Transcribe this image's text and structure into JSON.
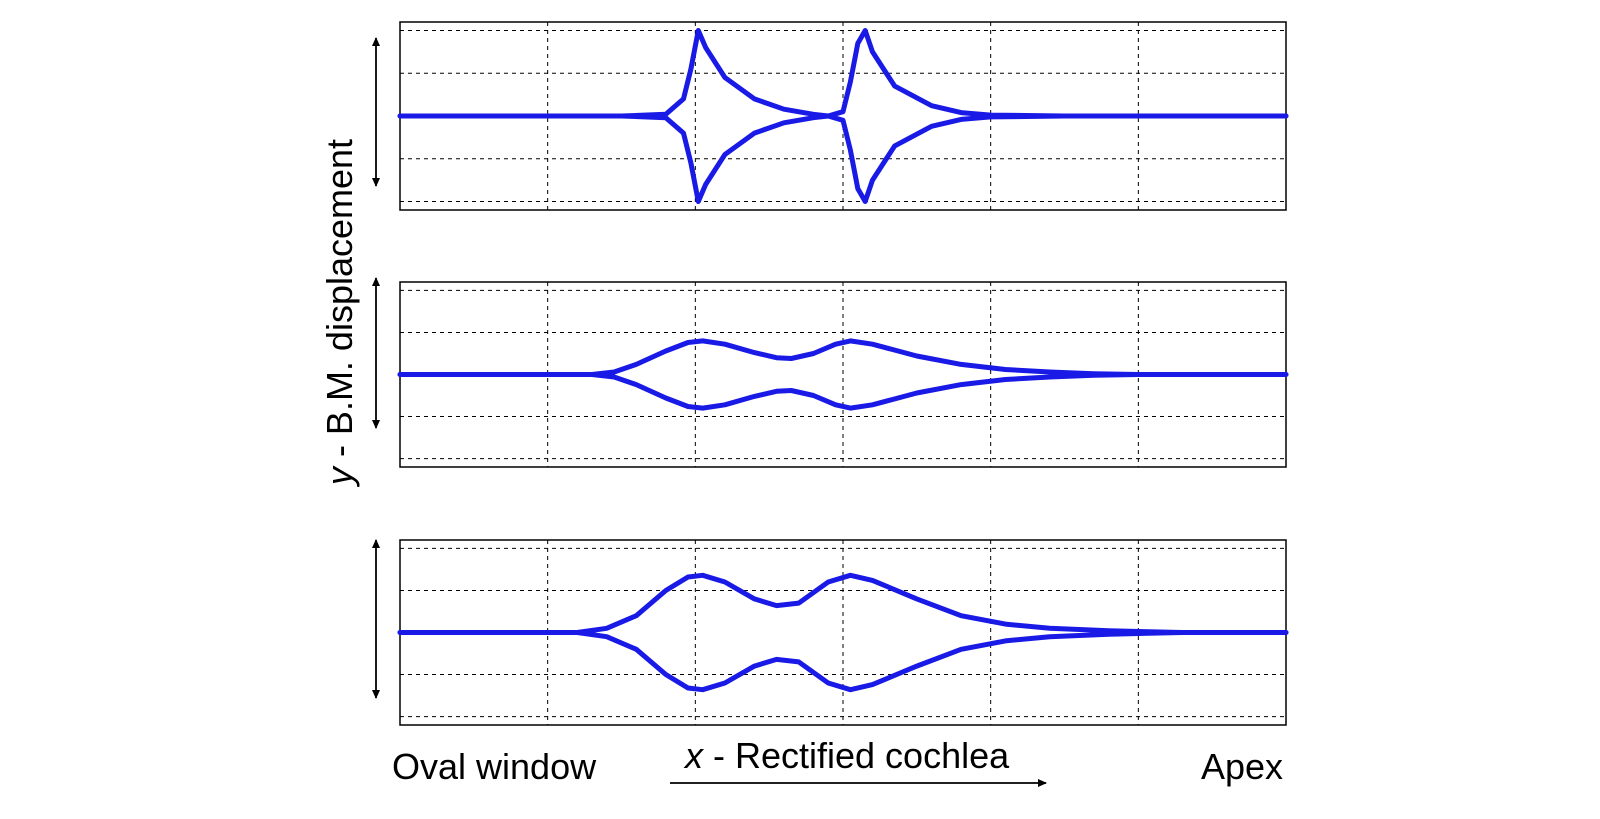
{
  "colors": {
    "curve": "#1a1ae6",
    "frame": "#000000",
    "grid": "#000000"
  },
  "labels": {
    "y_axis_var": "y",
    "y_axis_text": " - B.M. displacement",
    "x_axis_var": "x",
    "x_axis_text": " - Rectified cochlea",
    "x_left": "Oval window",
    "x_right": "Apex"
  },
  "chart_data": [
    {
      "type": "line",
      "panel": 1,
      "grid": true,
      "xlim": [
        0,
        6
      ],
      "ylim": [
        -1.1,
        1.1
      ],
      "series": [
        {
          "points": [
            [
              0,
              0
            ],
            [
              1.5,
              0
            ],
            [
              1.8,
              0.02
            ],
            [
              1.92,
              0.2
            ],
            [
              1.97,
              0.55
            ],
            [
              2.02,
              1.0
            ],
            [
              2.07,
              0.8
            ],
            [
              2.2,
              0.45
            ],
            [
              2.4,
              0.2
            ],
            [
              2.6,
              0.08
            ],
            [
              2.8,
              0.02
            ],
            [
              2.9,
              0
            ],
            [
              3.0,
              0.05
            ],
            [
              3.05,
              0.4
            ],
            [
              3.1,
              0.85
            ],
            [
              3.15,
              1.0
            ],
            [
              3.2,
              0.75
            ],
            [
              3.35,
              0.35
            ],
            [
              3.6,
              0.12
            ],
            [
              3.8,
              0.04
            ],
            [
              4.0,
              0.01
            ],
            [
              4.5,
              0
            ],
            [
              6,
              0
            ]
          ]
        },
        {
          "points": [
            [
              0,
              0
            ],
            [
              1.5,
              0
            ],
            [
              1.8,
              -0.02
            ],
            [
              1.92,
              -0.2
            ],
            [
              1.97,
              -0.55
            ],
            [
              2.02,
              -1.0
            ],
            [
              2.07,
              -0.8
            ],
            [
              2.2,
              -0.45
            ],
            [
              2.4,
              -0.2
            ],
            [
              2.6,
              -0.08
            ],
            [
              2.8,
              -0.02
            ],
            [
              2.9,
              0
            ],
            [
              3.0,
              -0.05
            ],
            [
              3.05,
              -0.4
            ],
            [
              3.1,
              -0.85
            ],
            [
              3.15,
              -1.0
            ],
            [
              3.2,
              -0.75
            ],
            [
              3.35,
              -0.35
            ],
            [
              3.6,
              -0.12
            ],
            [
              3.8,
              -0.04
            ],
            [
              4.0,
              -0.01
            ],
            [
              4.5,
              0
            ],
            [
              6,
              0
            ]
          ]
        }
      ]
    },
    {
      "type": "line",
      "panel": 2,
      "grid": true,
      "xlim": [
        0,
        6
      ],
      "ylim": [
        -1.1,
        1.1
      ],
      "series": [
        {
          "points": [
            [
              0,
              0
            ],
            [
              1.3,
              0
            ],
            [
              1.45,
              0.03
            ],
            [
              1.6,
              0.12
            ],
            [
              1.8,
              0.28
            ],
            [
              1.95,
              0.38
            ],
            [
              2.05,
              0.4
            ],
            [
              2.2,
              0.36
            ],
            [
              2.4,
              0.26
            ],
            [
              2.55,
              0.2
            ],
            [
              2.65,
              0.19
            ],
            [
              2.8,
              0.25
            ],
            [
              2.95,
              0.36
            ],
            [
              3.05,
              0.4
            ],
            [
              3.2,
              0.36
            ],
            [
              3.5,
              0.22
            ],
            [
              3.8,
              0.12
            ],
            [
              4.1,
              0.06
            ],
            [
              4.4,
              0.03
            ],
            [
              4.7,
              0.01
            ],
            [
              5.0,
              0
            ],
            [
              6,
              0
            ]
          ]
        },
        {
          "points": [
            [
              0,
              0
            ],
            [
              1.3,
              0
            ],
            [
              1.45,
              -0.03
            ],
            [
              1.6,
              -0.12
            ],
            [
              1.8,
              -0.28
            ],
            [
              1.95,
              -0.38
            ],
            [
              2.05,
              -0.4
            ],
            [
              2.2,
              -0.36
            ],
            [
              2.4,
              -0.26
            ],
            [
              2.55,
              -0.2
            ],
            [
              2.65,
              -0.19
            ],
            [
              2.8,
              -0.25
            ],
            [
              2.95,
              -0.36
            ],
            [
              3.05,
              -0.4
            ],
            [
              3.2,
              -0.36
            ],
            [
              3.5,
              -0.22
            ],
            [
              3.8,
              -0.12
            ],
            [
              4.1,
              -0.06
            ],
            [
              4.4,
              -0.03
            ],
            [
              4.7,
              -0.01
            ],
            [
              5.0,
              0
            ],
            [
              6,
              0
            ]
          ]
        }
      ]
    },
    {
      "type": "line",
      "panel": 3,
      "grid": true,
      "xlim": [
        0,
        6
      ],
      "ylim": [
        -1.1,
        1.1
      ],
      "series": [
        {
          "points": [
            [
              0,
              0
            ],
            [
              1.2,
              0
            ],
            [
              1.4,
              0.05
            ],
            [
              1.6,
              0.2
            ],
            [
              1.8,
              0.5
            ],
            [
              1.95,
              0.66
            ],
            [
              2.05,
              0.68
            ],
            [
              2.2,
              0.6
            ],
            [
              2.4,
              0.4
            ],
            [
              2.55,
              0.32
            ],
            [
              2.7,
              0.35
            ],
            [
              2.9,
              0.6
            ],
            [
              3.05,
              0.68
            ],
            [
              3.2,
              0.62
            ],
            [
              3.5,
              0.4
            ],
            [
              3.8,
              0.2
            ],
            [
              4.1,
              0.1
            ],
            [
              4.4,
              0.05
            ],
            [
              4.8,
              0.02
            ],
            [
              5.3,
              0
            ],
            [
              6,
              0
            ]
          ]
        },
        {
          "points": [
            [
              0,
              0
            ],
            [
              1.2,
              0
            ],
            [
              1.4,
              -0.05
            ],
            [
              1.6,
              -0.2
            ],
            [
              1.8,
              -0.5
            ],
            [
              1.95,
              -0.66
            ],
            [
              2.05,
              -0.68
            ],
            [
              2.2,
              -0.6
            ],
            [
              2.4,
              -0.4
            ],
            [
              2.55,
              -0.32
            ],
            [
              2.7,
              -0.35
            ],
            [
              2.9,
              -0.6
            ],
            [
              3.05,
              -0.68
            ],
            [
              3.2,
              -0.62
            ],
            [
              3.5,
              -0.4
            ],
            [
              3.8,
              -0.2
            ],
            [
              4.1,
              -0.1
            ],
            [
              4.4,
              -0.05
            ],
            [
              4.8,
              -0.02
            ],
            [
              5.3,
              0
            ],
            [
              6,
              0
            ]
          ]
        }
      ]
    }
  ]
}
